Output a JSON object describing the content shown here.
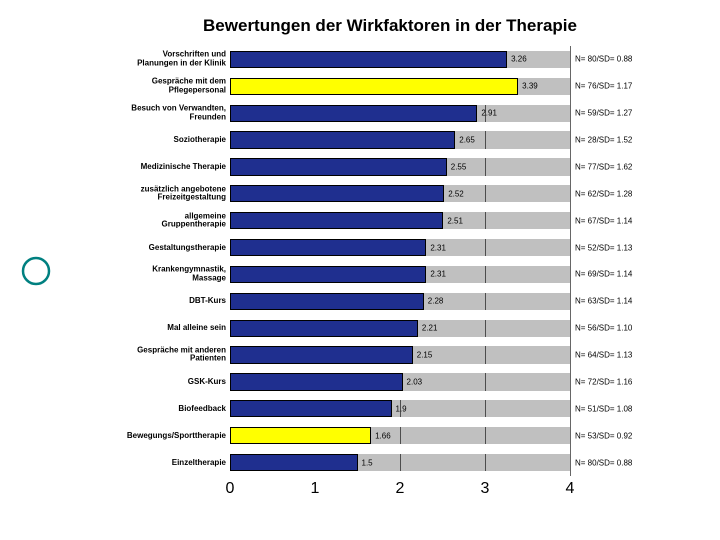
{
  "title": "Bewertungen der Wirkfaktoren in der Therapie",
  "x": {
    "min": 0,
    "max": 4,
    "ticks": [
      0,
      1,
      2,
      3,
      4
    ],
    "tick_fontsize": 16
  },
  "bar_style": {
    "default_color": "#1f2f8f",
    "highlight_color": "#ffff00",
    "border": "#000000",
    "grid_bg": "#c0c0c0",
    "row_bg": "#ffffff"
  },
  "label_fontsize": 8,
  "items": [
    {
      "label": "Vorschriften und\nPlanungen in der Klinik",
      "value": 3.26,
      "right": "N= 80/SD= 0.88",
      "highlight": false
    },
    {
      "label": "Gespräche mit dem\nPflegepersonal",
      "value": 3.39,
      "right": "N= 76/SD= 1.17",
      "highlight": true
    },
    {
      "label": "Besuch von Verwandten,\nFreunden",
      "value": 2.91,
      "right": "N= 59/SD= 1.27",
      "highlight": false
    },
    {
      "label": "Soziotherapie",
      "value": 2.65,
      "right": "N= 28/SD= 1.52",
      "highlight": false
    },
    {
      "label": "Medizinische Therapie",
      "value": 2.55,
      "right": "N= 77/SD= 1.62",
      "highlight": false
    },
    {
      "label": "zusätzlich angebotene\nFreizeitgestaltung",
      "value": 2.52,
      "right": "N= 62/SD= 1.28",
      "highlight": false
    },
    {
      "label": "allgemeine\nGruppentherapie",
      "value": 2.51,
      "right": "N= 67/SD= 1.14",
      "highlight": false
    },
    {
      "label": "Gestaltungstherapie",
      "value": 2.31,
      "right": "N= 52/SD= 1.13",
      "highlight": false
    },
    {
      "label": "Krankengymnastik,\nMassage",
      "value": 2.31,
      "right": "N= 69/SD= 1.14",
      "highlight": false
    },
    {
      "label": "DBT-Kurs",
      "value": 2.28,
      "right": "N= 63/SD= 1.14",
      "highlight": false
    },
    {
      "label": "Mal alleine sein",
      "value": 2.21,
      "right": "N= 56/SD= 1.10",
      "highlight": false
    },
    {
      "label": "Gespräche mit anderen\nPatienten",
      "value": 2.15,
      "right": "N= 64/SD= 1.13",
      "highlight": false
    },
    {
      "label": "GSK-Kurs",
      "value": 2.03,
      "right": "N= 72/SD= 1.16",
      "highlight": false
    },
    {
      "label": "Biofeedback",
      "value": 1.9,
      "right": "N= 51/SD= 1.08",
      "highlight": false
    },
    {
      "label": "Bewegungs/Sporttherapie",
      "value": 1.66,
      "right": "N= 53/SD= 0.92",
      "highlight": true
    },
    {
      "label": "Einzeltherapie",
      "value": 1.5,
      "right": "N= 80/SD= 0.88",
      "highlight": false
    }
  ],
  "bullet_color": "#008080"
}
